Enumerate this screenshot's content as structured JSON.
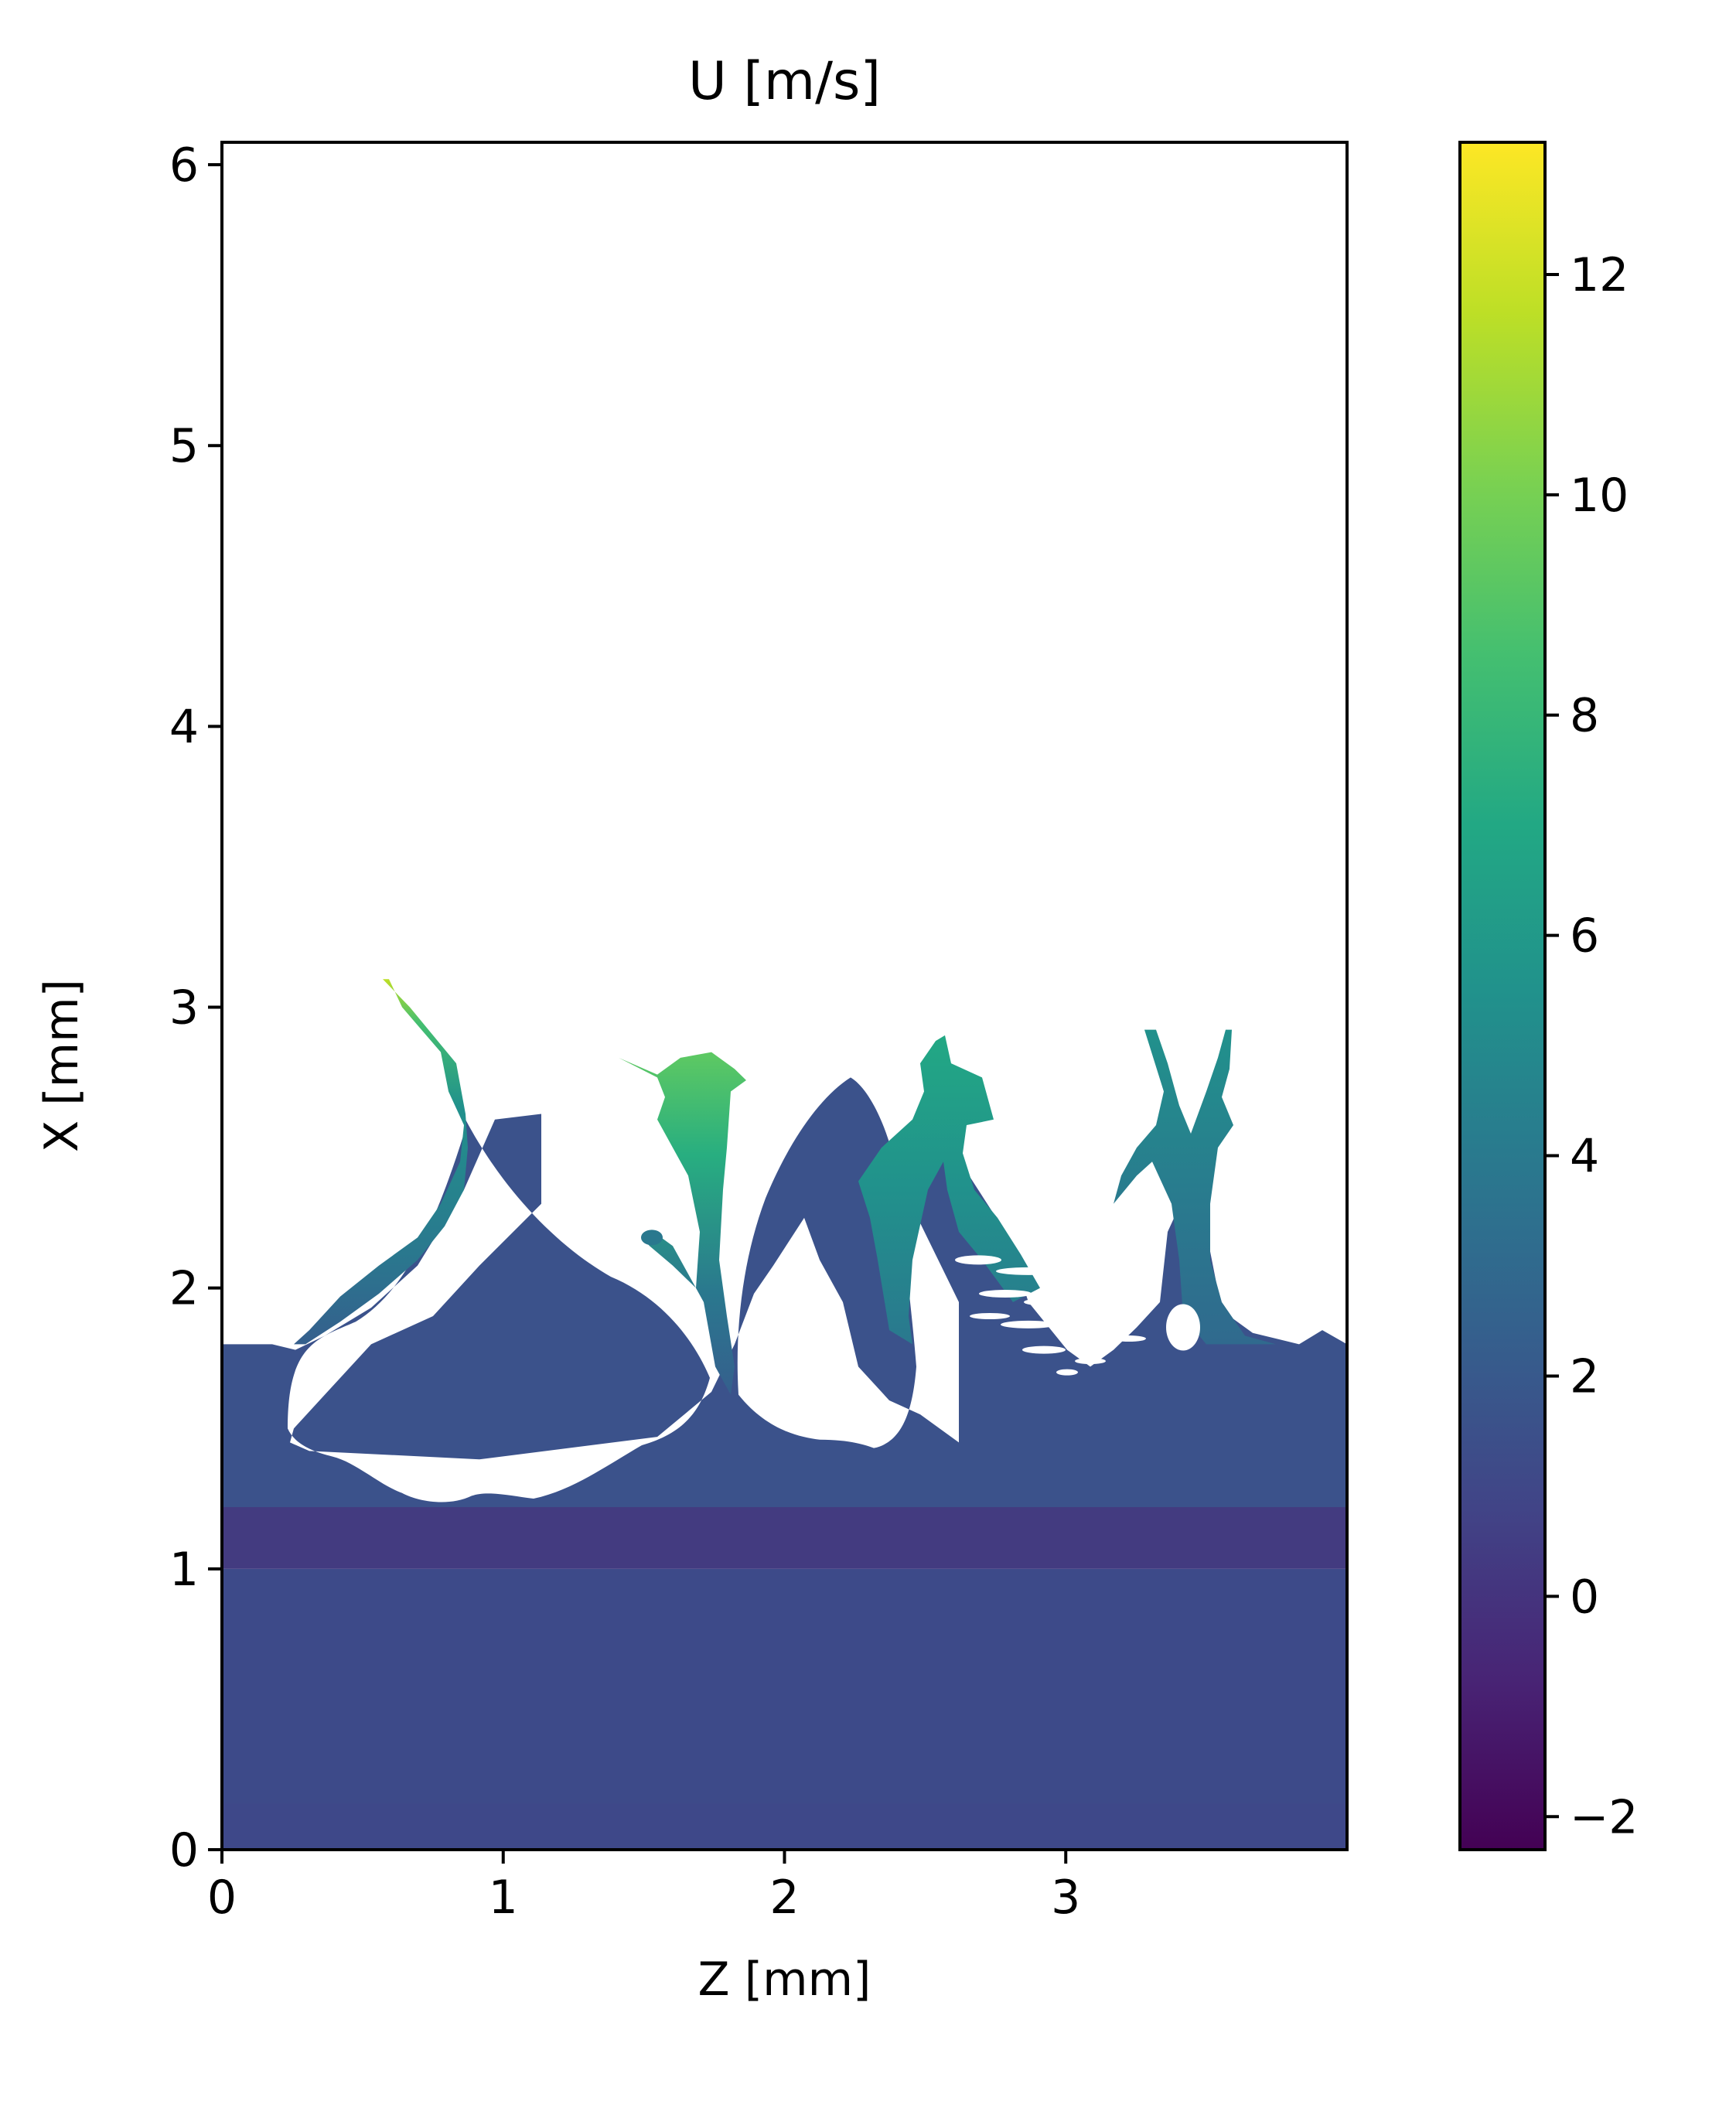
{
  "chart_data": {
    "type": "heatmap",
    "title": "U [m/s]",
    "xlabel": "Z [mm]",
    "ylabel": "X [mm]",
    "xlim": [
      0,
      4.0
    ],
    "ylim": [
      0,
      6.08
    ],
    "xticks": [
      0,
      1,
      2,
      3
    ],
    "yticks": [
      0,
      1,
      2,
      3,
      4,
      5,
      6
    ],
    "colorbar": {
      "colormap": "viridis",
      "range": [
        -2.3,
        13.2
      ],
      "ticks": [
        -2,
        0,
        2,
        4,
        6,
        8,
        10,
        12
      ],
      "tick_labels": [
        "−2",
        "0",
        "2",
        "4",
        "6",
        "8",
        "10",
        "12"
      ]
    },
    "grid": false,
    "field_regions": [
      {
        "name": "bottom layer",
        "x_range": [
          0,
          1.0
        ],
        "value": 1.0
      },
      {
        "name": "middle band",
        "x_range": [
          1.0,
          1.22
        ],
        "value": 0.3
      },
      {
        "name": "upper liquid layer",
        "x_range": [
          1.22,
          1.8
        ],
        "value": 1.5
      },
      {
        "name": "ligament 1 tip",
        "approx_z": 0.6,
        "approx_x": 3.1,
        "value": 12.5
      },
      {
        "name": "ligament 2 crown",
        "approx_z": 1.6,
        "approx_x": 2.7,
        "value": 9.0
      },
      {
        "name": "ligament 3",
        "approx_z": 2.6,
        "approx_x": 2.5,
        "value": 6.0
      },
      {
        "name": "ligament 4",
        "approx_z": 3.4,
        "approx_x": 2.5,
        "value": 5.0
      }
    ]
  }
}
